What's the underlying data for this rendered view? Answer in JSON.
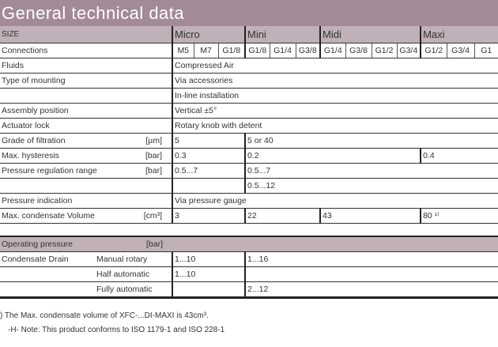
{
  "title": "General technical data",
  "sizes": {
    "label": "SIZE",
    "groups": [
      "Micro",
      "Mini",
      "Midi",
      "Maxi"
    ]
  },
  "connections": {
    "label": "Connections",
    "values": [
      "M5",
      "M7",
      "G1/8",
      "G1/8",
      "G1/4",
      "G3/8",
      "G1/4",
      "G3/8",
      "G1/2",
      "G3/4",
      "G1/2",
      "G3/4",
      "G1"
    ]
  },
  "rows": [
    {
      "label": "Fluids",
      "unit": "",
      "cells": [
        {
          "t": "Compressed Air",
          "s": 13
        }
      ]
    },
    {
      "label": "Type of mounting",
      "unit": "",
      "cells": [
        {
          "t": "Via accessories",
          "s": 13
        }
      ]
    },
    {
      "label": "",
      "unit": "",
      "cells": [
        {
          "t": "In-line installation",
          "s": 13
        }
      ]
    },
    {
      "label": "Assembly position",
      "unit": "",
      "cells": [
        {
          "t": "Vertical ±5°",
          "s": 13
        }
      ]
    },
    {
      "label": "Actuator lock",
      "unit": "",
      "cells": [
        {
          "t": "Rotary knob with detent",
          "s": 13
        }
      ]
    },
    {
      "label": "Grade of filtration",
      "unit": "[µm]",
      "cells": [
        {
          "t": "5",
          "s": 3
        },
        {
          "t": "5 or 40",
          "s": 10
        }
      ]
    },
    {
      "label": "Max. hysteresis",
      "unit": "[bar]",
      "cells": [
        {
          "t": "0.3",
          "s": 3
        },
        {
          "t": "0.2",
          "s": 7
        },
        {
          "t": "0.4",
          "s": 3
        }
      ]
    },
    {
      "label": "Pressure regulation range",
      "unit": "[bar]",
      "cells": [
        {
          "t": "0.5...7",
          "s": 3
        },
        {
          "t": "0.5...7",
          "s": 10
        }
      ]
    },
    {
      "label": "",
      "unit": "",
      "cells": [
        {
          "t": "",
          "s": 3
        },
        {
          "t": "0.5...12",
          "s": 10
        }
      ]
    },
    {
      "label": "Pressure indication",
      "unit": "",
      "cells": [
        {
          "t": "Via pressure gauge",
          "s": 13
        }
      ]
    },
    {
      "label": "Max. condensate Volume",
      "unit": "[cm³]",
      "cells": [
        {
          "t": "3",
          "s": 3
        },
        {
          "t": "22",
          "s": 3
        },
        {
          "t": "43",
          "s": 4
        },
        {
          "t": "80 ¹⁾",
          "s": 3
        }
      ]
    }
  ],
  "operating": {
    "label": "Operating pressure",
    "unit": "[bar]"
  },
  "drain": {
    "label": "Condensate Drain",
    "rows": [
      {
        "type": "Manual rotary",
        "micro": "1...10",
        "rest": "1...16"
      },
      {
        "type": "Half automatic",
        "micro": "1...10",
        "rest": ""
      },
      {
        "type": "Fully automatic",
        "micro": "",
        "rest": "2...12"
      }
    ]
  },
  "footnotes": [
    ") The Max. condensate volume of XFC-...DI-MAXI is 43cm³.",
    "-H- Note: This product conforms to ISO 1179-1 and ISO 228-1"
  ]
}
